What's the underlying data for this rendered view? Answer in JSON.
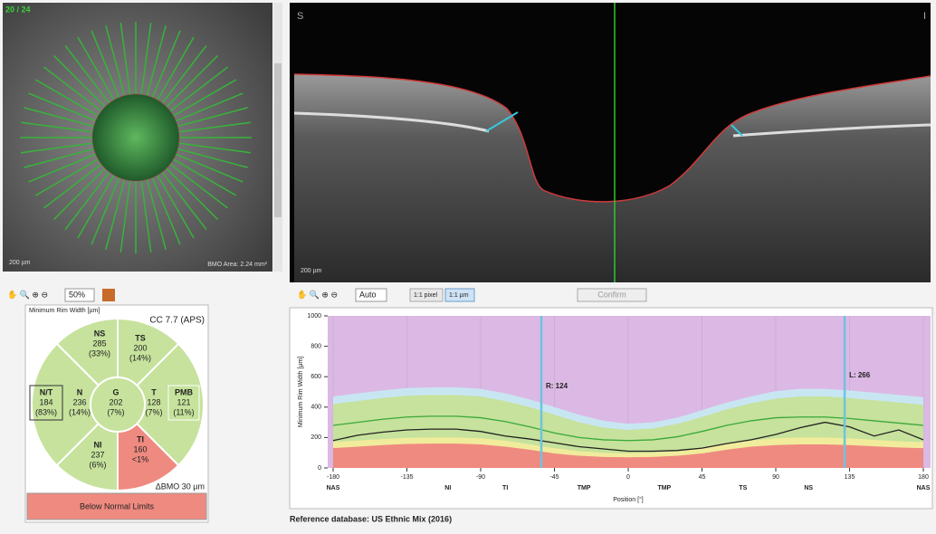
{
  "fundus": {
    "counter": "20 / 24",
    "scale": "200 µm",
    "bmo_area": "BMO Area: 2.24 mm²"
  },
  "bscan": {
    "left": "S",
    "right": "I",
    "scale": "200 µm"
  },
  "toolbar_left": {
    "zoom": "50%"
  },
  "toolbar_right": {
    "zoom": "Auto",
    "pixel": "1:1 pixel",
    "micron": "1:1 µm",
    "confirm": "Confirm"
  },
  "summary": {
    "title": "Minimum Rim Width [µm]",
    "quality": "CC 7.7 (APS)",
    "delta": "ΔBMO 30 µm",
    "classification": "Below Normal Limits",
    "sectors": [
      {
        "label": "NS",
        "value": "285",
        "percent": "(33%)"
      },
      {
        "label": "TS",
        "value": "200",
        "percent": "(14%)"
      },
      {
        "label": "N/T",
        "value": "184",
        "percent": "(83%)"
      },
      {
        "label": "N",
        "value": "236",
        "percent": "(14%)"
      },
      {
        "label": "G",
        "value": "202",
        "percent": "(7%)"
      },
      {
        "label": "T",
        "value": "128",
        "percent": "(7%)"
      },
      {
        "label": "PMB",
        "value": "121",
        "percent": "(11%)"
      },
      {
        "label": "NI",
        "value": "237",
        "percent": "(6%)"
      },
      {
        "label": "TI",
        "value": "160",
        "percent": "<1%"
      }
    ]
  },
  "chart_data": {
    "type": "line",
    "xlabel": "Position [°]",
    "ylabel": "Minimum Rim Width [µm]",
    "x": [
      -180,
      -165,
      -150,
      -135,
      -120,
      -105,
      -90,
      -75,
      -60,
      -45,
      -30,
      -15,
      0,
      15,
      30,
      45,
      60,
      75,
      90,
      105,
      120,
      135,
      150,
      165,
      180
    ],
    "xlim": [
      -180,
      180
    ],
    "ylim": [
      0,
      1000
    ],
    "xticks": [
      -180,
      -135,
      -90,
      -45,
      0,
      45,
      90,
      135,
      180
    ],
    "yticks": [
      0,
      200,
      400,
      600,
      800,
      1000
    ],
    "background": "#dcb8e4",
    "grid": true,
    "series": [
      {
        "color": "#c8e6f2",
        "fill": true,
        "values": [
          470,
          490,
          510,
          525,
          530,
          530,
          520,
          490,
          450,
          400,
          350,
          310,
          290,
          300,
          330,
          380,
          430,
          470,
          505,
          520,
          520,
          510,
          495,
          480,
          465
        ]
      },
      {
        "color": "#c6e29c",
        "fill": true,
        "values": [
          420,
          440,
          460,
          475,
          480,
          480,
          470,
          440,
          400,
          350,
          300,
          265,
          250,
          260,
          290,
          335,
          385,
          425,
          455,
          470,
          470,
          460,
          445,
          430,
          415
        ]
      },
      {
        "color": "#f1ec9c",
        "fill": true,
        "values": [
          170,
          180,
          190,
          198,
          200,
          200,
          195,
          180,
          155,
          130,
          110,
          100,
          95,
          100,
          110,
          130,
          160,
          180,
          195,
          200,
          200,
          195,
          185,
          175,
          170
        ]
      },
      {
        "color": "#ef8a80",
        "fill": true,
        "values": [
          130,
          140,
          150,
          158,
          160,
          160,
          155,
          140,
          120,
          95,
          80,
          72,
          70,
          72,
          80,
          95,
          120,
          140,
          150,
          155,
          155,
          150,
          142,
          135,
          130
        ]
      },
      {
        "color": "#3aa83a",
        "fill": false,
        "values": [
          280,
          300,
          320,
          335,
          340,
          340,
          330,
          305,
          270,
          230,
          200,
          185,
          180,
          185,
          205,
          240,
          280,
          310,
          330,
          335,
          335,
          325,
          310,
          295,
          280
        ]
      },
      {
        "color": "#222222",
        "fill": false,
        "values": [
          180,
          215,
          235,
          250,
          255,
          255,
          240,
          210,
          190,
          165,
          140,
          125,
          110,
          110,
          115,
          130,
          160,
          185,
          220,
          265,
          300,
          270,
          210,
          250,
          185
        ]
      }
    ],
    "sector_labels": [
      {
        "value": -180,
        "label": "NAS"
      },
      {
        "value": -110,
        "label": "NI"
      },
      {
        "value": -75,
        "label": "TI"
      },
      {
        "value": -27,
        "label": "TMP"
      },
      {
        "value": 22,
        "label": "TMP"
      },
      {
        "value": 70,
        "label": "TS"
      },
      {
        "value": 110,
        "label": "NS"
      },
      {
        "value": 180,
        "label": "NAS"
      }
    ],
    "markers": [
      {
        "x": -53,
        "label": "R: 124"
      },
      {
        "x": 132,
        "label": "L: 266"
      }
    ]
  },
  "footer": "Reference database: US Ethnic Mix (2016)"
}
